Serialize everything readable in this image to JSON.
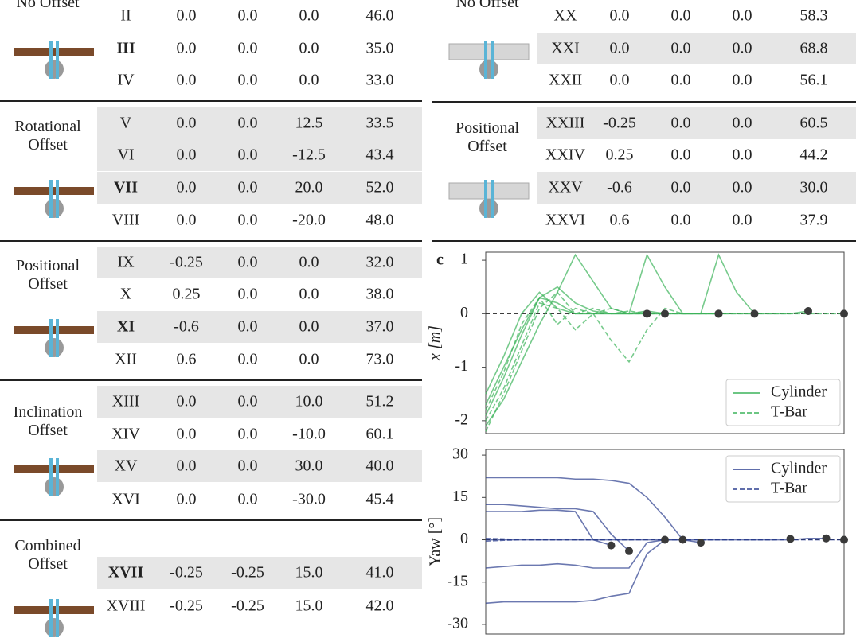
{
  "left_table": {
    "groups": [
      {
        "label": "No Offset",
        "rows": [
          [
            "II",
            "0.0",
            "0.0",
            "0.0",
            "46.0"
          ],
          [
            "III",
            "0.0",
            "0.0",
            "0.0",
            "35.0"
          ],
          [
            "IV",
            "0.0",
            "0.0",
            "0.0",
            "33.0"
          ]
        ]
      },
      {
        "label": "Rotational Offset",
        "rows": [
          [
            "V",
            "0.0",
            "0.0",
            "12.5",
            "33.5"
          ],
          [
            "VI",
            "0.0",
            "0.0",
            "-12.5",
            "43.4"
          ],
          [
            "VII",
            "0.0",
            "0.0",
            "20.0",
            "52.0"
          ],
          [
            "VIII",
            "0.0",
            "0.0",
            "-20.0",
            "48.0"
          ]
        ]
      },
      {
        "label": "Positional Offset",
        "rows": [
          [
            "IX",
            "-0.25",
            "0.0",
            "0.0",
            "32.0"
          ],
          [
            "X",
            "0.25",
            "0.0",
            "0.0",
            "38.0"
          ],
          [
            "XI",
            "-0.6",
            "0.0",
            "0.0",
            "37.0"
          ],
          [
            "XII",
            "0.6",
            "0.0",
            "0.0",
            "73.0"
          ]
        ]
      },
      {
        "label": "Inclination Offset",
        "rows": [
          [
            "XIII",
            "0.0",
            "0.0",
            "10.0",
            "51.2"
          ],
          [
            "XIV",
            "0.0",
            "0.0",
            "-10.0",
            "60.1"
          ],
          [
            "XV",
            "0.0",
            "0.0",
            "30.0",
            "40.0"
          ],
          [
            "XVI",
            "0.0",
            "0.0",
            "-30.0",
            "45.4"
          ]
        ]
      },
      {
        "label": "Combined Offset",
        "rows": [
          [
            "XVII",
            "-0.25",
            "-0.25",
            "15.0",
            "41.0"
          ],
          [
            "XVIII",
            "-0.25",
            "-0.25",
            "15.0",
            "42.0"
          ]
        ]
      }
    ]
  },
  "right_table": {
    "groups": [
      {
        "label": "No Offset",
        "rows": [
          [
            "XX",
            "0.0",
            "0.0",
            "0.0",
            "58.3"
          ],
          [
            "XXI",
            "0.0",
            "0.0",
            "0.0",
            "68.8"
          ],
          [
            "XXII",
            "0.0",
            "0.0",
            "0.0",
            "56.1"
          ]
        ]
      },
      {
        "label": "Positional Offset",
        "rows": [
          [
            "XXIII",
            "-0.25",
            "0.0",
            "0.0",
            "60.5"
          ],
          [
            "XXIV",
            "0.25",
            "0.0",
            "0.0",
            "44.2"
          ],
          [
            "XXV",
            "-0.6",
            "0.0",
            "0.0",
            "30.0"
          ],
          [
            "XXVI",
            "0.6",
            "0.0",
            "0.0",
            "37.9"
          ]
        ]
      }
    ]
  },
  "panel_label": "c",
  "chart_data": [
    {
      "type": "line",
      "ylabel": "x [m]",
      "ylim": [
        -2.24,
        1.15
      ],
      "yticks": [
        1,
        0,
        -1,
        -2
      ],
      "xlim": [
        0,
        20
      ],
      "x": [
        0,
        1,
        2,
        3,
        4,
        5,
        6,
        7,
        8,
        9,
        10,
        11,
        12,
        13,
        14,
        15,
        16,
        17,
        18,
        19,
        20
      ],
      "legend": "lower right",
      "series": [
        {
          "name": "Cylinder",
          "color": "#3cb35a",
          "dashed": false,
          "trajectories": [
            [
              -1.9,
              -1.2,
              -0.4,
              0.3,
              0.5,
              0.2,
              0.05,
              0.0,
              0.0,
              0.0
            ],
            [
              -2.1,
              -1.6,
              -0.9,
              -0.2,
              0.4,
              1.1,
              0.6,
              0.1,
              0.0,
              0.05,
              0.0,
              0.0,
              0.0,
              0.0
            ],
            [
              -1.5,
              -0.8,
              0.0,
              0.4,
              0.1,
              0.0,
              0.0,
              0.0,
              0.0,
              1.1,
              0.5,
              0.0,
              0.0,
              0.0,
              0.0,
              0.0
            ],
            [
              -1.7,
              -1.0,
              -0.3,
              0.3,
              0.2,
              0.0,
              0.0,
              0.0,
              0.0,
              0.0,
              0.0,
              0.0,
              0.0,
              1.1,
              0.4,
              0.0,
              0.0,
              0.0,
              0.05
            ]
          ]
        },
        {
          "name": "T-Bar",
          "color": "#3cb35a",
          "dashed": true,
          "trajectories": [
            [
              -2.0,
              -1.4,
              -0.6,
              0.2,
              0.1,
              -0.3,
              0.0,
              0.1,
              0.0,
              0.0,
              0.0
            ],
            [
              -1.8,
              -1.1,
              -0.2,
              0.3,
              -0.2,
              0.1,
              0.0,
              -0.5,
              -0.9,
              -0.3,
              0.1,
              0.0,
              0.0,
              0.0
            ],
            [
              -2.2,
              -1.5,
              -0.7,
              0.1,
              0.4,
              0.0,
              0.1,
              0.0,
              0.05,
              0.0,
              0.0,
              0.0,
              0.0,
              0.0,
              0.0,
              0.0,
              0.0,
              0.0,
              0.0,
              0.0,
              0.0
            ]
          ]
        }
      ]
    },
    {
      "type": "line",
      "ylabel": "Yaw [°]",
      "ylim": [
        -33.4,
        32
      ],
      "yticks": [
        30,
        15,
        0,
        -15,
        -30
      ],
      "xlim": [
        0,
        20
      ],
      "x": [
        0,
        1,
        2,
        3,
        4,
        5,
        6,
        7,
        8,
        9,
        10,
        11,
        12,
        13,
        14,
        15,
        16,
        17,
        18,
        19,
        20
      ],
      "legend": "upper right",
      "series": [
        {
          "name": "Cylinder",
          "color": "#2c3e8f",
          "dashed": false,
          "trajectories": [
            [
              22,
              22,
              22,
              22,
              22,
              21.5,
              21.5,
              21,
              20,
              15,
              8,
              0,
              -1
            ],
            [
              12.5,
              12.5,
              12,
              11.5,
              11,
              11,
              10,
              2,
              -4
            ],
            [
              10,
              10,
              10,
              10.5,
              10.5,
              10,
              0,
              -2
            ],
            [
              -10,
              -9.5,
              -9,
              -9,
              -8.5,
              -9,
              -10,
              -10,
              -10,
              -1,
              0
            ],
            [
              -22.5,
              -22,
              -22,
              -22,
              -22,
              -22,
              -21.5,
              -20,
              -19,
              -5,
              0,
              0
            ],
            [
              0,
              0,
              0,
              0,
              0,
              0,
              0,
              0,
              0,
              0,
              0,
              0,
              0,
              0,
              0,
              0,
              0,
              0,
              0.5,
              0.5
            ]
          ]
        },
        {
          "name": "T-Bar",
          "color": "#2c3e8f",
          "dashed": true,
          "trajectories": [
            [
              0.5,
              0.3,
              0,
              0,
              0,
              0,
              0,
              0,
              0,
              0,
              0,
              0,
              0,
              0,
              0,
              0,
              0,
              0.3
            ],
            [
              -0.5,
              -0.2,
              0,
              0,
              0,
              0,
              0,
              0,
              0,
              0.2,
              0,
              0,
              0,
              0,
              0,
              0,
              0,
              0,
              0,
              0,
              0
            ]
          ]
        }
      ]
    }
  ]
}
